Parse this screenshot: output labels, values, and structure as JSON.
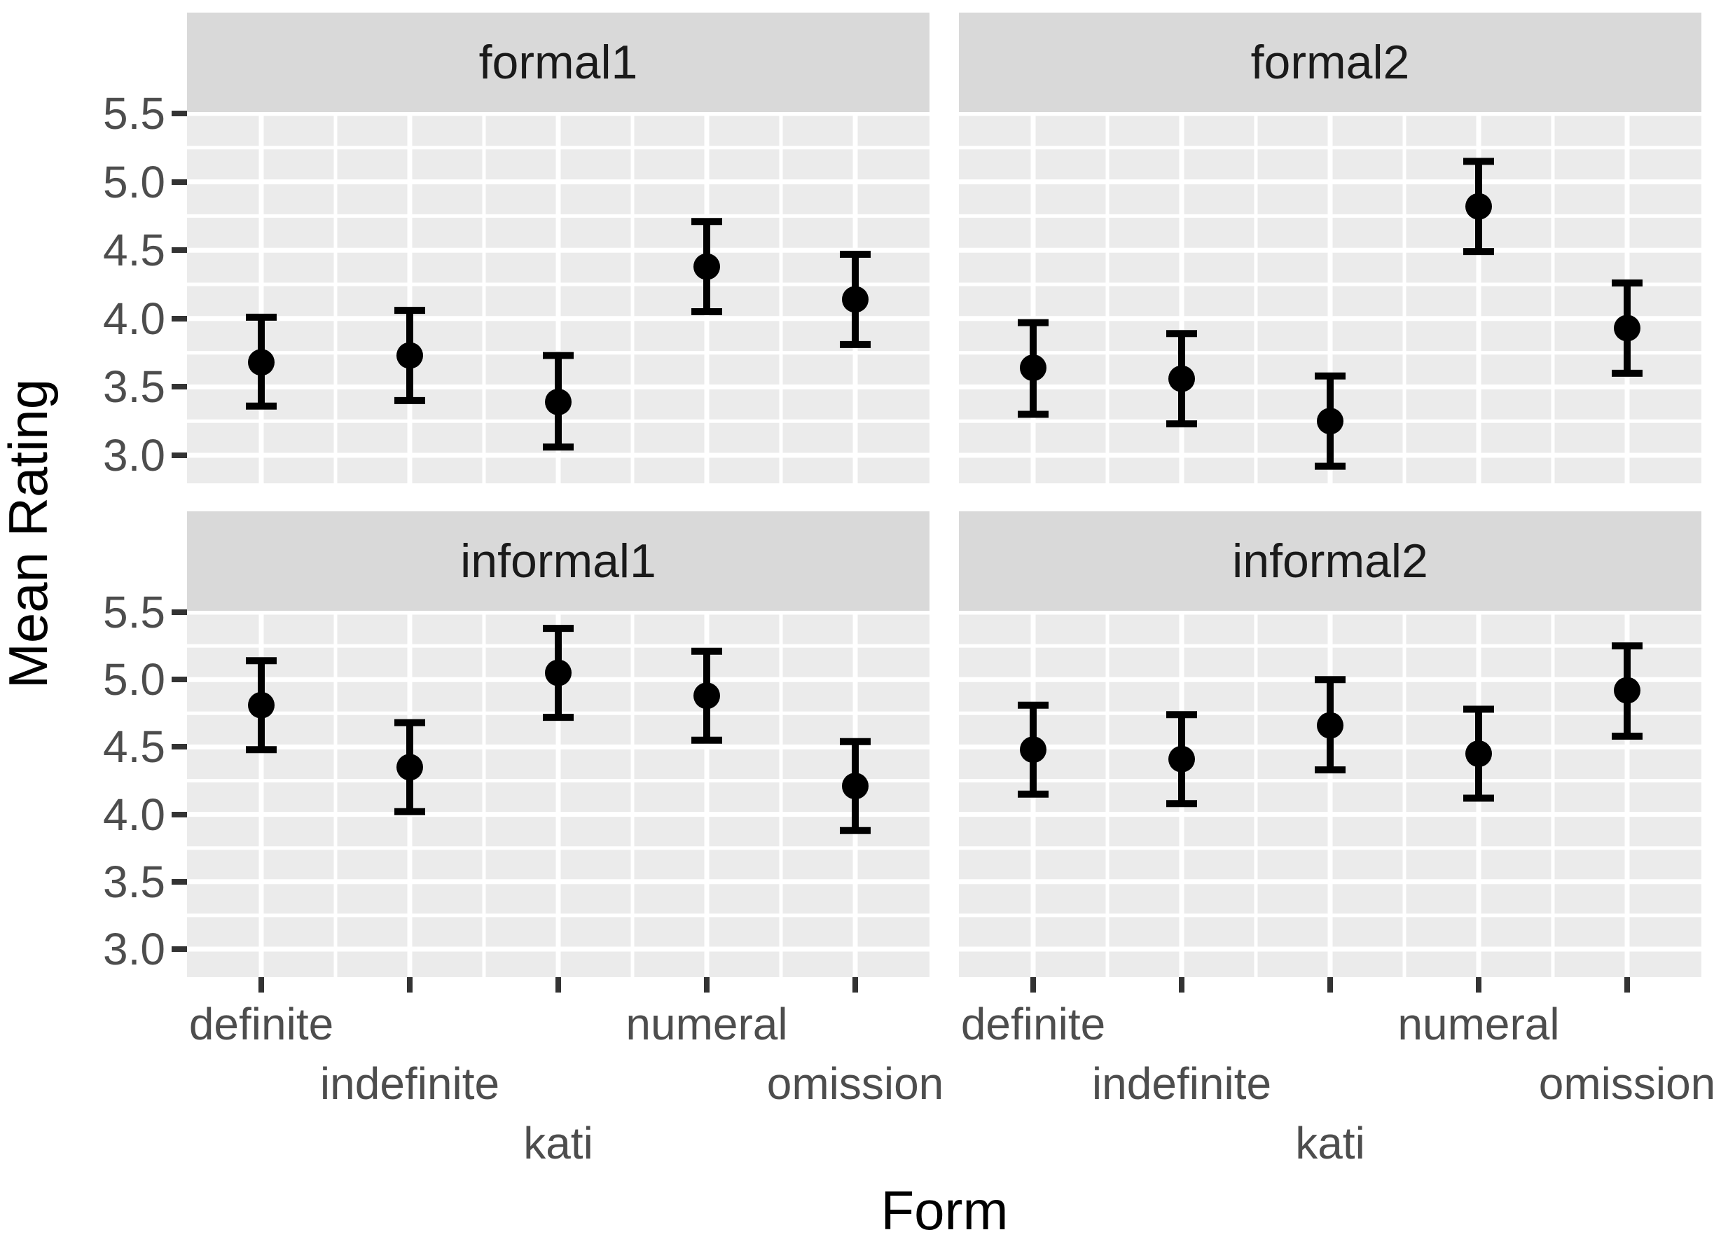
{
  "figure": {
    "x_axis_title": "Form",
    "y_axis_title": "Mean Rating"
  },
  "chart_data": {
    "type": "pointrange-facets",
    "title": "",
    "xlabel": "Form",
    "ylabel": "Mean Rating",
    "legend": "none",
    "grid": "white major and minor gridlines on grey panels",
    "categories": [
      "definite",
      "indefinite",
      "kati",
      "numeral",
      "omission"
    ],
    "y_tick_labels": [
      "3.0",
      "3.5",
      "4.0",
      "4.5",
      "5.0",
      "5.5"
    ],
    "y_tick_values": [
      3.0,
      3.5,
      4.0,
      4.5,
      5.0,
      5.5
    ],
    "ylim": [
      2.8,
      5.51
    ],
    "facets": [
      {
        "label": "formal1",
        "means": [
          3.68,
          3.73,
          3.39,
          4.38,
          4.14
        ],
        "lowers": [
          3.36,
          3.4,
          3.06,
          4.05,
          3.81
        ],
        "uppers": [
          4.01,
          4.06,
          3.73,
          4.71,
          4.47
        ]
      },
      {
        "label": "formal2",
        "means": [
          3.64,
          3.56,
          3.25,
          4.82,
          3.93
        ],
        "lowers": [
          3.3,
          3.23,
          2.92,
          4.49,
          3.6
        ],
        "uppers": [
          3.97,
          3.89,
          3.58,
          5.15,
          4.26
        ]
      },
      {
        "label": "informal1",
        "means": [
          4.81,
          4.35,
          5.05,
          4.88,
          4.21
        ],
        "lowers": [
          4.48,
          4.02,
          4.72,
          4.55,
          3.88
        ],
        "uppers": [
          5.14,
          4.68,
          5.38,
          5.21,
          4.54
        ]
      },
      {
        "label": "informal2",
        "means": [
          4.48,
          4.41,
          4.66,
          4.45,
          4.92
        ],
        "lowers": [
          4.15,
          4.08,
          4.33,
          4.12,
          4.58
        ],
        "uppers": [
          4.81,
          4.74,
          5.0,
          4.78,
          5.25
        ]
      }
    ],
    "colors": {
      "strip_bg": "#D9D9D9",
      "panel_bg": "#EBEBEB",
      "gridline": "#FFFFFF",
      "axis_text": "#4D4D4D",
      "tick_mark": "#333333",
      "point": "#000000",
      "title_text": "#000000"
    }
  }
}
